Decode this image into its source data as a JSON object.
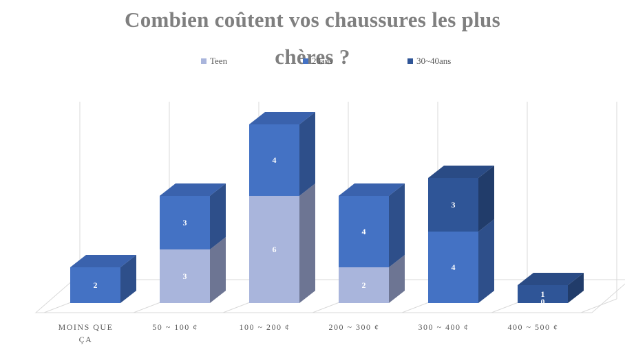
{
  "chart_data": {
    "type": "bar",
    "stacked": true,
    "three_d": true,
    "title_lines": [
      "Combien coûtent vos chaussures les plus",
      "chères ?"
    ],
    "categories": [
      [
        "MOINS QUE",
        "ÇA"
      ],
      [
        "50 ~ 100 ¢"
      ],
      [
        "100 ~ 200 ¢"
      ],
      [
        "200 ~ 300 ¢"
      ],
      [
        "300 ~ 400 ¢"
      ],
      [
        "400 ~ 500 ¢"
      ]
    ],
    "series": [
      {
        "name": "Teen",
        "values": [
          0,
          3,
          6,
          2,
          0,
          0
        ],
        "color": "#a9b5dc",
        "side": "#6d7593",
        "top": "#8895c6"
      },
      {
        "name": "20ans",
        "values": [
          2,
          3,
          4,
          4,
          4,
          0
        ],
        "color": "#4472c4",
        "side": "#2e4f8a",
        "top": "#3a62ad"
      },
      {
        "name": "30~40ans",
        "values": [
          0,
          0,
          0,
          0,
          3,
          1
        ],
        "color": "#2f5597",
        "side": "#213c6a",
        "top": "#2a4b85"
      }
    ],
    "data_labels": [
      [
        "",
        "3",
        "6",
        "2",
        "",
        ""
      ],
      [
        "2",
        "3",
        "4",
        "4",
        "4",
        "0"
      ],
      [
        "",
        "",
        "",
        "",
        "3",
        "1"
      ]
    ],
    "legend_position": "top",
    "grid": true,
    "ylim": [
      0,
      10
    ],
    "title_color": "#7f7f7f",
    "text_color": "#595959"
  }
}
